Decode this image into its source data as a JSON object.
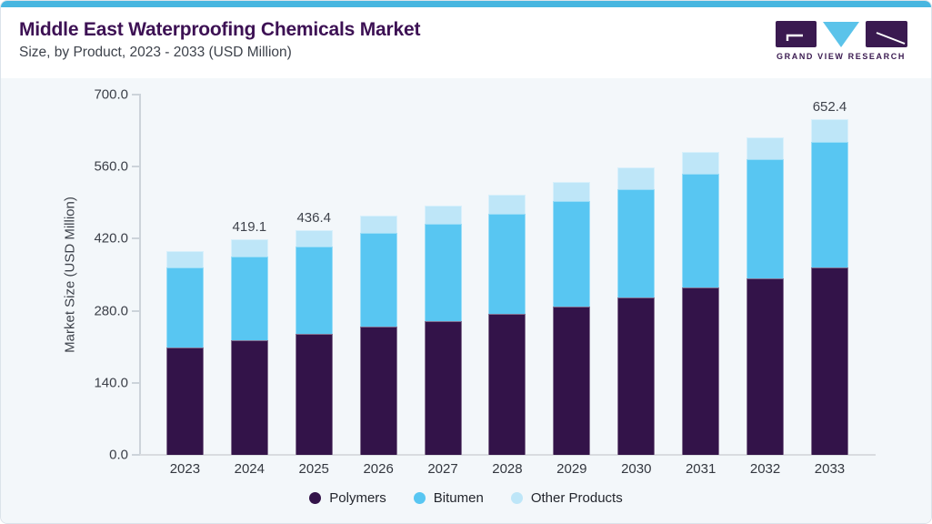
{
  "header": {
    "title": "Middle East Waterproofing Chemicals Market",
    "subtitle": "Size, by Product, 2023 - 2033 (USD Million)",
    "logo_text": "GRAND VIEW RESEARCH"
  },
  "colors": {
    "accent_strip": "#47b6e0",
    "title_text": "#3d1154",
    "chart_background": "#f3f7fa",
    "axis_line": "#ccd3da",
    "polymers": "#331349",
    "bitumen": "#58c6f2",
    "other_products": "#bee6f8",
    "logo_purple": "#3a1a50",
    "logo_blue": "#5bc3ea"
  },
  "chart_data": {
    "type": "bar",
    "stacked": true,
    "title": "Middle East Waterproofing Chemicals Market Size, by Product, 2023 - 2033 (USD Million)",
    "categories": [
      "2023",
      "2024",
      "2025",
      "2026",
      "2027",
      "2028",
      "2029",
      "2030",
      "2031",
      "2032",
      "2033"
    ],
    "series": [
      {
        "name": "Polymers",
        "color": "#331349",
        "values": [
          209.0,
          223.3,
          235.7,
          250.0,
          260.6,
          274.9,
          287.3,
          305.1,
          324.7,
          342.5,
          363.9
        ]
      },
      {
        "name": "Bitumen",
        "color": "#58c6f2",
        "values": [
          155.0,
          161.9,
          170.0,
          181.5,
          188.7,
          194.0,
          206.5,
          211.9,
          220.7,
          231.4,
          243.8
        ]
      },
      {
        "name": "Other Products",
        "color": "#bee6f8",
        "values": [
          32.0,
          33.9,
          30.7,
          33.8,
          35.6,
          37.4,
          37.4,
          40.9,
          42.8,
          42.7,
          44.7
        ]
      }
    ],
    "totals": [
      396.0,
      419.1,
      436.4,
      465.3,
      484.9,
      506.3,
      531.2,
      557.9,
      588.2,
      616.6,
      652.4
    ],
    "bar_labels": [
      "",
      "419.1",
      "436.4",
      "",
      "",
      "",
      "",
      "",
      "",
      "",
      "652.4"
    ],
    "xlabel": "",
    "ylabel": "Market Size (USD Million)",
    "ylim": [
      0,
      700
    ],
    "yticks": [
      "0.0",
      "140.0",
      "280.0",
      "420.0",
      "560.0",
      "700.0"
    ],
    "grid": false,
    "legend_position": "bottom"
  }
}
